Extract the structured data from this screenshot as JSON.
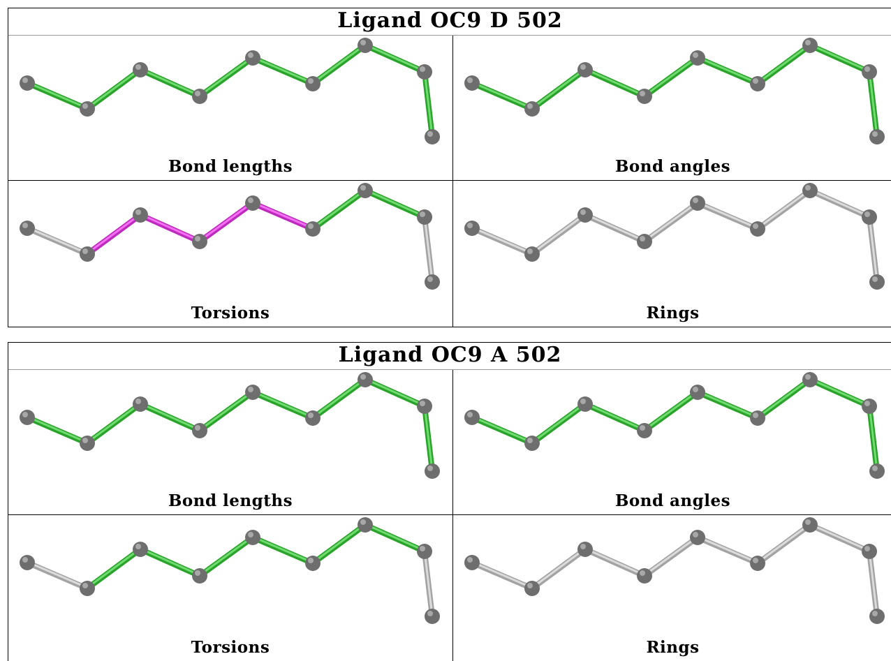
{
  "ligands": [
    {
      "title": "Ligand OC9 D 502",
      "panels": [
        {
          "label": "Bond lengths",
          "bond_colors": [
            "green",
            "green",
            "green",
            "green",
            "green",
            "green",
            "green",
            "green"
          ]
        },
        {
          "label": "Bond angles",
          "bond_colors": [
            "green",
            "green",
            "green",
            "green",
            "green",
            "green",
            "green",
            "green"
          ]
        },
        {
          "label": "Torsions",
          "bond_colors": [
            "gray",
            "magenta",
            "magenta",
            "magenta",
            "magenta",
            "green",
            "green",
            "gray"
          ]
        },
        {
          "label": "Rings",
          "bond_colors": [
            "gray",
            "gray",
            "gray",
            "gray",
            "gray",
            "gray",
            "gray",
            "gray"
          ]
        }
      ]
    },
    {
      "title": "Ligand OC9 A 502",
      "panels": [
        {
          "label": "Bond lengths",
          "bond_colors": [
            "green",
            "green",
            "green",
            "green",
            "green",
            "green",
            "green",
            "green"
          ]
        },
        {
          "label": "Bond angles",
          "bond_colors": [
            "green",
            "green",
            "green",
            "green",
            "green",
            "green",
            "green",
            "green"
          ]
        },
        {
          "label": "Torsions",
          "bond_colors": [
            "gray",
            "green",
            "green",
            "green",
            "green",
            "green",
            "green",
            "gray"
          ]
        },
        {
          "label": "Rings",
          "bond_colors": [
            "gray",
            "gray",
            "gray",
            "gray",
            "gray",
            "gray",
            "gray",
            "gray"
          ]
        }
      ]
    }
  ],
  "colors": {
    "green": "#33cc33",
    "magenta": "#ee33ee",
    "gray": "#cccccc",
    "atom": "#6e6e6e"
  }
}
